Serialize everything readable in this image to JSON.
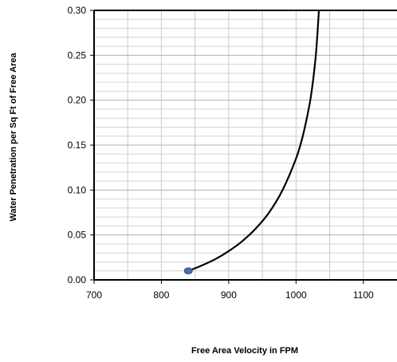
{
  "chart_data": {
    "type": "line",
    "title": "",
    "xlabel": "Free Area Velocity in FPM",
    "ylabel": "Water Penetration per Sq Ft of Free Area",
    "xlim": [
      700,
      1150
    ],
    "ylim": [
      0,
      0.3
    ],
    "x_ticks": [
      700,
      800,
      900,
      1000,
      1100
    ],
    "x_tick_labels": [
      "700",
      "800",
      "900",
      "1000",
      "1100"
    ],
    "y_ticks": [
      0,
      0.05,
      0.1,
      0.15,
      0.2,
      0.25,
      0.3
    ],
    "y_tick_labels": [
      "0.00",
      "0.05",
      "0.10",
      "0.15",
      "0.20",
      "0.25",
      "0.30"
    ],
    "grid": true,
    "legend": "none",
    "series": [
      {
        "x": [
          840,
          860,
          880,
          900,
          920,
          940,
          960,
          980,
          1000,
          1010,
          1020,
          1025,
          1030,
          1034
        ],
        "y": [
          0.01,
          0.016,
          0.023,
          0.032,
          0.043,
          0.057,
          0.075,
          0.1,
          0.135,
          0.16,
          0.195,
          0.22,
          0.255,
          0.3
        ],
        "color": "#000000"
      }
    ],
    "markers": [
      {
        "x": 840,
        "y": 0.01,
        "color": "#4a6fa5"
      }
    ]
  }
}
